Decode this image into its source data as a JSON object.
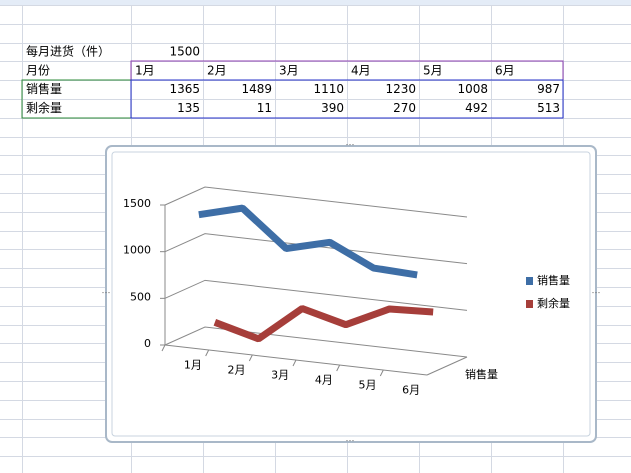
{
  "sheet": {
    "rows": [
      [
        "每月进货（件）",
        1500
      ],
      [
        "月份",
        "1月",
        "2月",
        "3月",
        "4月",
        "5月",
        "6月"
      ],
      [
        "销售量",
        1365,
        1489,
        1110,
        1230,
        1008,
        987
      ],
      [
        "剩余量",
        135,
        11,
        390,
        270,
        492,
        513
      ]
    ]
  },
  "chart_data": {
    "type": "line",
    "categories": [
      "1月",
      "2月",
      "3月",
      "4月",
      "5月",
      "6月"
    ],
    "series": [
      {
        "name": "销售量",
        "color": "#3e6ea6",
        "values": [
          1365,
          1489,
          1110,
          1230,
          1008,
          987
        ]
      },
      {
        "name": "剩余量",
        "color": "#a63e3a",
        "values": [
          135,
          11,
          390,
          270,
          492,
          513
        ]
      }
    ],
    "ylim": [
      0,
      1500
    ],
    "yticks": [
      0,
      500,
      1000,
      1500
    ],
    "grid": true,
    "legend": "right"
  }
}
